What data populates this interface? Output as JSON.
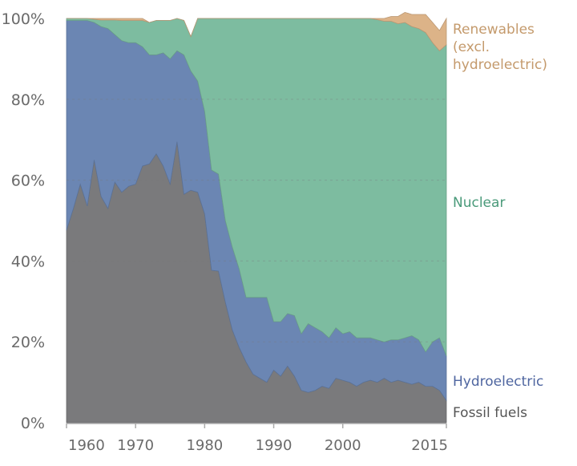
{
  "chart_data": {
    "type": "area",
    "stacked": true,
    "title": "",
    "xlabel": "",
    "ylabel": "",
    "xlim": [
      1960,
      2015
    ],
    "ylim": [
      0,
      100
    ],
    "grid": true,
    "x_ticks": [
      1960,
      1970,
      1980,
      1990,
      2000,
      2015
    ],
    "x_tick_labels": [
      "1960",
      "1970",
      "1980",
      "1990",
      "2000",
      "2015"
    ],
    "y_ticks": [
      0,
      20,
      40,
      60,
      80,
      100
    ],
    "y_tick_labels": [
      "0%",
      "20%",
      "40%",
      "60%",
      "80%",
      "100%"
    ],
    "legend_placement": "right (inline labels)",
    "x": [
      1960,
      1961,
      1962,
      1963,
      1964,
      1965,
      1966,
      1967,
      1968,
      1969,
      1970,
      1971,
      1972,
      1973,
      1974,
      1975,
      1976,
      1977,
      1978,
      1979,
      1980,
      1981,
      1982,
      1983,
      1984,
      1985,
      1986,
      1987,
      1988,
      1989,
      1990,
      1991,
      1992,
      1993,
      1994,
      1995,
      1996,
      1997,
      1998,
      1999,
      2000,
      2001,
      2002,
      2003,
      2004,
      2005,
      2006,
      2007,
      2008,
      2009,
      2010,
      2011,
      2012,
      2013,
      2014,
      2015
    ],
    "series": [
      {
        "name": "Fossil fuels",
        "label": "Fossil fuels",
        "color": "#7a7a7c",
        "label_color": "#555555",
        "values": [
          47.6,
          53,
          59,
          53.6,
          65,
          56,
          53,
          59.5,
          57,
          58.5,
          59,
          63.5,
          64,
          66.5,
          63.5,
          59,
          69.5,
          56.5,
          57.5,
          57,
          51.6,
          37.7,
          37.5,
          29.8,
          23,
          18.6,
          15,
          12,
          11,
          10,
          13,
          11.5,
          14,
          11.5,
          8,
          7.5,
          8,
          9,
          8.5,
          11,
          10.5,
          10,
          9,
          10,
          10.5,
          10,
          11,
          10,
          10.5,
          10,
          9.5,
          10,
          9,
          9,
          8,
          5.5
        ]
      },
      {
        "name": "Hydroelectric",
        "label": "Hydroelectric",
        "color": "#6b86b3",
        "label_color": "#4f66a0",
        "values": [
          51.9,
          46.5,
          40.5,
          45.9,
          34,
          42,
          44.5,
          36.5,
          37.5,
          35.5,
          35,
          29.5,
          27,
          24.5,
          28,
          31,
          22.5,
          34.5,
          29.5,
          27.5,
          25.4,
          24.8,
          24,
          20.2,
          20.5,
          19.4,
          16,
          19,
          20,
          21,
          12,
          13.5,
          13,
          15,
          14,
          17,
          15.5,
          13.5,
          12.5,
          12.5,
          11.5,
          12.5,
          12,
          11,
          10.5,
          10.5,
          9,
          10.5,
          10,
          11,
          12,
          10.5,
          8.5,
          11,
          13,
          11
        ]
      },
      {
        "name": "Nuclear",
        "label": "Nuclear",
        "color": "#7dbca0",
        "label_color": "#4a9a7a",
        "values": [
          0.5,
          0.5,
          0.5,
          0.5,
          0.8,
          1.6,
          2.1,
          3.6,
          5,
          5.5,
          5.5,
          6.5,
          8,
          8.5,
          8,
          9.5,
          8,
          8.5,
          8.5,
          15.5,
          23,
          37.5,
          38.5,
          50,
          56.5,
          62,
          69,
          69,
          69,
          69,
          75,
          75,
          73,
          73.5,
          78,
          75.5,
          76.5,
          77.5,
          79,
          76.5,
          78,
          77.5,
          79,
          79,
          79,
          79.2,
          79.3,
          78.8,
          78.2,
          78,
          76.5,
          77,
          79,
          74,
          71,
          77
        ]
      },
      {
        "name": "Renewables (excl. hydroelectric)",
        "label_lines": [
          "Renewables",
          "(excl.",
          "hydroelectric)"
        ],
        "color": "#dcb388",
        "label_color": "#c49a6c",
        "values": [
          0,
          0,
          0,
          0,
          0.2,
          0.4,
          0.4,
          0.4,
          0.5,
          0.5,
          0.5,
          0.5,
          0,
          0,
          0,
          0,
          0,
          0,
          0,
          0,
          0,
          0,
          0,
          0,
          0,
          0,
          0,
          0,
          0,
          0,
          0,
          0,
          0,
          0,
          0,
          0,
          0,
          0,
          0,
          0,
          0,
          0,
          0,
          0,
          0,
          0.3,
          0.7,
          1.2,
          1.8,
          2.5,
          3,
          3.5,
          4.5,
          5,
          5,
          6.5
        ]
      }
    ]
  }
}
